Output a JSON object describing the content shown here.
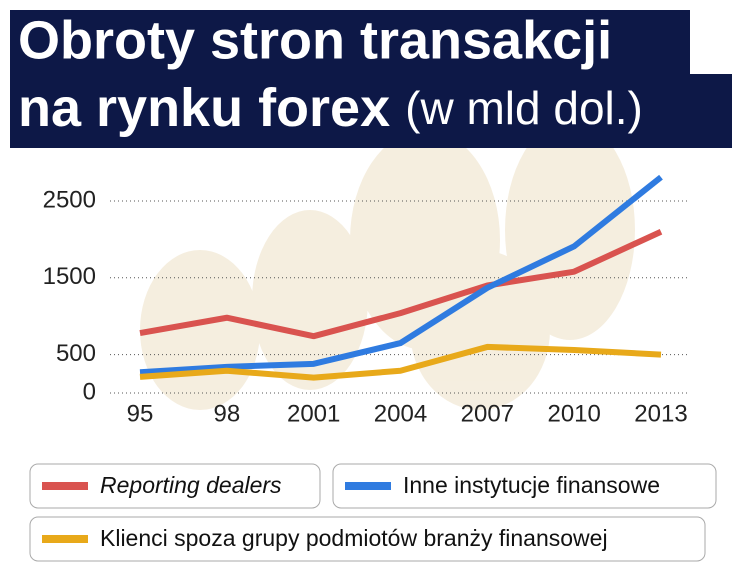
{
  "chart_data": {
    "type": "line",
    "title": [
      "Obroty stron transakcji",
      "na rynku forex"
    ],
    "unit": "(w mld dol.)",
    "categories": [
      "95",
      "98",
      "2001",
      "2004",
      "2007",
      "2010",
      "2013"
    ],
    "series": [
      {
        "name": "Reporting dealers",
        "color": "#d9534f",
        "values": [
          780,
          980,
          740,
          1040,
          1400,
          1580,
          2100
        ]
      },
      {
        "name": "Inne instytucje finansowe",
        "color": "#2f7be0",
        "values": [
          270,
          340,
          380,
          650,
          1370,
          1910,
          2810
        ]
      },
      {
        "name": "Klienci spoza grupy podmiotów branży finansowej",
        "color": "#e8a91a",
        "values": [
          210,
          290,
          200,
          290,
          600,
          560,
          500
        ]
      }
    ],
    "ylim": [
      0,
      2900
    ],
    "yticks": [
      0,
      500,
      1500,
      2500
    ],
    "grid": true
  }
}
